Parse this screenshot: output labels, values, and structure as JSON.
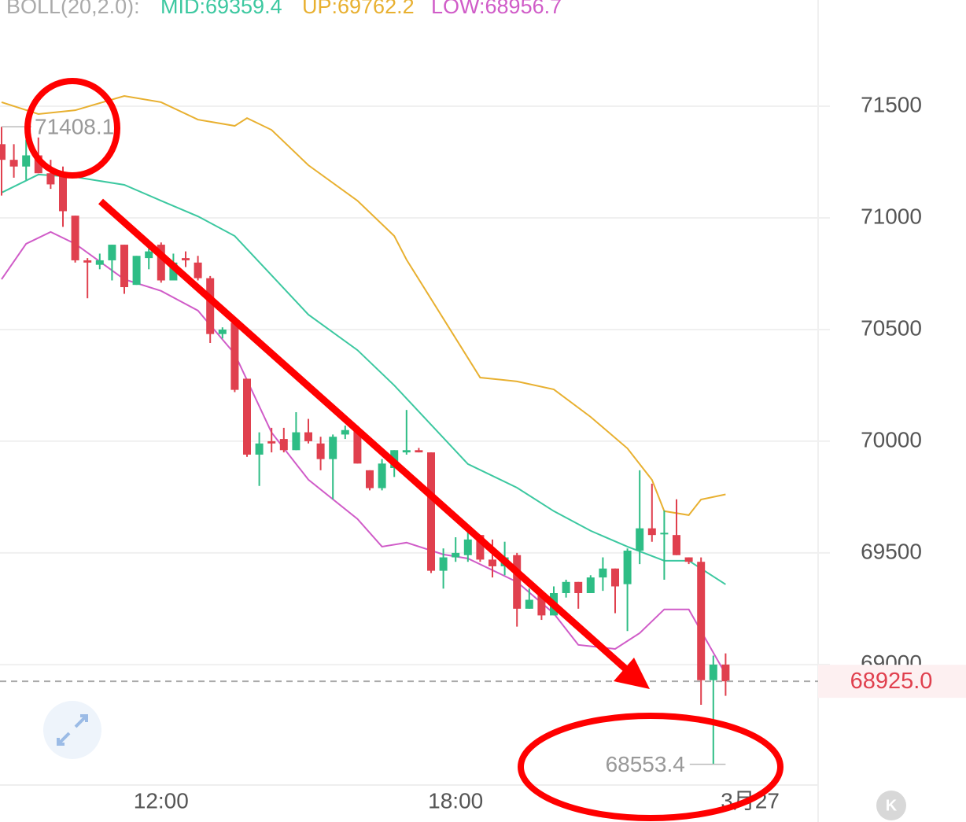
{
  "chart_data": {
    "type": "candlestick",
    "indicator": {
      "name": "BOLL(20,2.0):",
      "mid_label": "MID:69359.4",
      "up_label": "UP:69762.2",
      "low_label": "LOW:68956.7"
    },
    "open": [
      71330,
      71260,
      71230,
      71280,
      71200,
      71200,
      71010,
      70810,
      70790,
      70810,
      70880,
      70700,
      70820,
      70880,
      70720,
      70820,
      70800,
      70730,
      70480,
      70530,
      70280,
      69940,
      70000,
      70010,
      69960,
      70040,
      69990,
      69920,
      70030,
      70050,
      69870,
      69790,
      69880,
      69950,
      69960,
      69950,
      69420,
      69480,
      69490,
      69580,
      69470,
      69440,
      69490,
      69250,
      69310,
      69220,
      69320,
      69370,
      69320,
      69390,
      69430,
      69360,
      69510,
      69610,
      69590,
      69580,
      69480,
      69460,
      68930,
      69000
    ],
    "high": [
      71408.1,
      71330,
      71350,
      71360,
      71260,
      71230,
      71010,
      70820,
      70840,
      70880,
      70880,
      70830,
      70880,
      70890,
      70840,
      70850,
      70830,
      70740,
      70510,
      70530,
      70280,
      70040,
      70060,
      70060,
      70130,
      70100,
      70020,
      70030,
      70070,
      70070,
      69870,
      69920,
      69960,
      70140,
      69970,
      69950,
      69520,
      69570,
      69610,
      69580,
      69560,
      69550,
      69500,
      69340,
      69320,
      69350,
      69380,
      69370,
      69400,
      69480,
      69430,
      69520,
      69870,
      69810,
      69690,
      69740,
      69480,
      69480,
      69040,
      69050
    ],
    "low": [
      71100,
      71180,
      71170,
      71200,
      71130,
      70960,
      70800,
      70640,
      70770,
      70720,
      70660,
      70700,
      70770,
      70710,
      70720,
      70780,
      70720,
      70440,
      70460,
      70220,
      69930,
      69800,
      69950,
      69950,
      69960,
      69990,
      69870,
      69740,
      70010,
      69900,
      69780,
      69780,
      69840,
      69940,
      69950,
      69410,
      69340,
      69460,
      69460,
      69460,
      69390,
      69400,
      69170,
      69250,
      69200,
      69220,
      69300,
      69250,
      69320,
      69330,
      69230,
      69150,
      69450,
      69550,
      69380,
      69490,
      69450,
      68820,
      68553.4,
      68860
    ],
    "close": [
      71260,
      71230,
      71280,
      71200,
      71150,
      71030,
      70810,
      70800,
      70810,
      70880,
      70690,
      70830,
      70850,
      70720,
      70800,
      70810,
      70730,
      70480,
      70500,
      70230,
      69940,
      69990,
      69990,
      69960,
      70040,
      70000,
      69920,
      70020,
      70050,
      69900,
      69790,
      69900,
      69960,
      69960,
      69950,
      69420,
      69480,
      69500,
      69560,
      69470,
      69440,
      69480,
      69250,
      69290,
      69220,
      69320,
      69370,
      69320,
      69390,
      69430,
      69350,
      69510,
      69610,
      69580,
      69590,
      69490,
      69460,
      68930,
      69000,
      68925
    ],
    "up_color": "#2ebd85",
    "down_color": "#e0404e",
    "series": [
      {
        "name": "UP",
        "color": "#e8b030",
        "x": [
          0,
          3,
          6,
          10,
          13,
          16,
          19,
          20,
          22,
          25,
          29,
          32,
          33,
          35,
          37,
          39,
          42,
          45,
          48,
          51,
          53,
          54,
          56,
          57,
          59
        ],
        "values": [
          71518,
          71465,
          71482,
          71546,
          71518,
          71440,
          71412,
          71447,
          71394,
          71236,
          71077,
          70919,
          70813,
          70637,
          70461,
          70285,
          70268,
          70232,
          70109,
          69968,
          69827,
          69687,
          69669,
          69739,
          69762
        ]
      },
      {
        "name": "MID",
        "color": "#3cc8a0",
        "x": [
          0,
          3,
          6,
          10,
          13,
          16,
          19,
          22,
          25,
          29,
          32,
          35,
          38,
          42,
          45,
          48,
          51,
          54,
          56,
          59
        ],
        "values": [
          71113,
          71194,
          71183,
          71148,
          71077,
          71007,
          70919,
          70743,
          70567,
          70408,
          70250,
          70074,
          69898,
          69792,
          69687,
          69599,
          69528,
          69465,
          69465,
          69359
        ]
      },
      {
        "name": "LOW",
        "color": "#d05cc8",
        "x": [
          0,
          2,
          4,
          6,
          10,
          13,
          16,
          19,
          22,
          25,
          29,
          31,
          33,
          36,
          38,
          42,
          45,
          47,
          50,
          52,
          54,
          56,
          58,
          59
        ],
        "values": [
          70725,
          70884,
          70937,
          70884,
          70725,
          70673,
          70585,
          70391,
          70039,
          69828,
          69652,
          69528,
          69546,
          69493,
          69475,
          69370,
          69229,
          69088,
          69070,
          69141,
          69247,
          69247,
          69053,
          68957
        ]
      }
    ],
    "ylim": [
      68450,
      71870
    ],
    "yticks": [
      69000,
      69500,
      70000,
      70500,
      71000,
      71500
    ],
    "xticks": [
      {
        "value": 13,
        "label": "12:00"
      },
      {
        "value": 37,
        "label": "18:00"
      },
      {
        "value": 61,
        "label": "3月27"
      }
    ],
    "grid": true,
    "last_price": 68925,
    "last_price_label": "68925.0",
    "annotations": [
      {
        "value": 71408.1,
        "label": "71408.1",
        "index": 0
      },
      {
        "value": 68553.4,
        "label": "68553.4",
        "index": 58
      }
    ],
    "button": "K"
  }
}
